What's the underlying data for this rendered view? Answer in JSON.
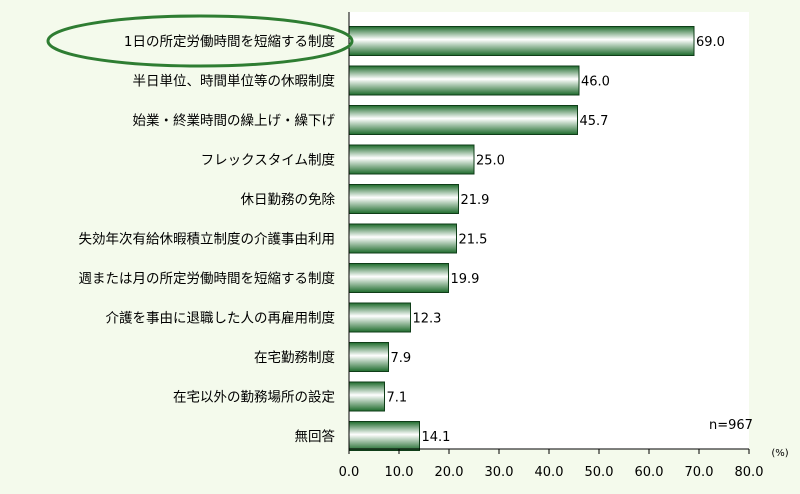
{
  "chart_data": {
    "type": "bar",
    "orientation": "horizontal",
    "categories": [
      "1日の所定労働時間を短縮する制度",
      "半日単位、時間単位等の休暇制度",
      "始業・終業時間の繰上げ・繰下げ",
      "フレックスタイム制度",
      "休日勤務の免除",
      "失効年次有給休暇積立制度の介護事由利用",
      "週または月の所定労働時間を短縮する制度",
      "介護を事由に退職した人の再雇用制度",
      "在宅勤務制度",
      "在宅以外の勤務場所の設定",
      "無回答"
    ],
    "values": [
      69.0,
      46.0,
      45.7,
      25.0,
      21.9,
      21.5,
      19.9,
      12.3,
      7.9,
      7.1,
      14.1
    ],
    "value_labels": [
      "69.0",
      "46.0",
      "45.7",
      "25.0",
      "21.9",
      "21.5",
      "19.9",
      "12.3",
      "7.9",
      "7.1",
      "14.1"
    ],
    "xlim": [
      0,
      80
    ],
    "x_ticks": [
      "0.0",
      "10.0",
      "20.0",
      "30.0",
      "40.0",
      "50.0",
      "60.0",
      "70.0",
      "80.0"
    ],
    "unit_label": "(%)",
    "sample_note": "n=967",
    "highlighted_category": "1日の所定労働時間を短縮する制度",
    "grid": false,
    "colors": {
      "background": "#f4faec",
      "plot_background": "#ffffff",
      "bar_dark": "#1e6b2c",
      "bar_light": "#ffffff",
      "highlight_ellipse": "#2e7d32"
    }
  }
}
